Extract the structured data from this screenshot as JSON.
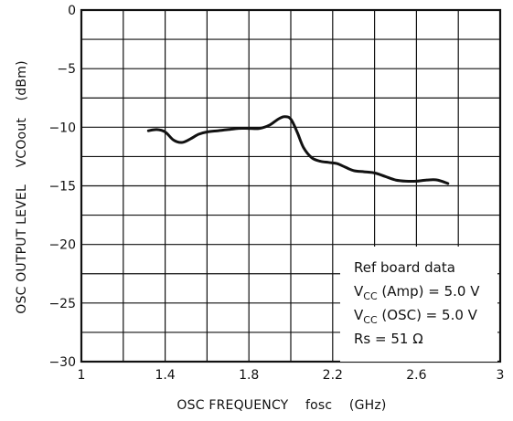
{
  "chart_data": {
    "type": "line",
    "xlabel": "OSC FREQUENCY    fosc    (GHz)",
    "ylabel": "OSC OUTPUT LEVEL    VCOout    (dBm)",
    "xlim": [
      1,
      3
    ],
    "ylim": [
      -30,
      0
    ],
    "x_ticks": [
      "1",
      "1.4",
      "1.8",
      "2.2",
      "2.6",
      "3"
    ],
    "x_tick_values": [
      1,
      1.4,
      1.8,
      2.2,
      2.6,
      3
    ],
    "y_ticks": [
      "0",
      "−5",
      "−10",
      "−15",
      "−20",
      "−25",
      "−30"
    ],
    "y_tick_values": [
      0,
      -5,
      -10,
      -15,
      -20,
      -25,
      -30
    ],
    "grid": true,
    "series": [
      {
        "x": [
          1.32,
          1.36,
          1.4,
          1.44,
          1.48,
          1.52,
          1.56,
          1.6,
          1.65,
          1.7,
          1.75,
          1.8,
          1.85,
          1.9,
          1.94,
          1.97,
          2.0,
          2.03,
          2.06,
          2.1,
          2.14,
          2.18,
          2.22,
          2.26,
          2.3,
          2.35,
          2.4,
          2.45,
          2.5,
          2.55,
          2.6,
          2.65,
          2.7,
          2.75
        ],
        "y": [
          -10.3,
          -10.2,
          -10.4,
          -11.1,
          -11.3,
          -11.0,
          -10.6,
          -10.4,
          -10.3,
          -10.2,
          -10.1,
          -10.1,
          -10.1,
          -9.8,
          -9.3,
          -9.1,
          -9.3,
          -10.4,
          -11.7,
          -12.6,
          -12.9,
          -13.0,
          -13.1,
          -13.4,
          -13.7,
          -13.8,
          -13.9,
          -14.2,
          -14.5,
          -14.6,
          -14.6,
          -14.5,
          -14.5,
          -14.8
        ]
      }
    ],
    "annotation": {
      "line1": "Ref board data",
      "line2_main": "V",
      "line2_sub": "CC",
      "line2_rest": " (Amp) = 5.0 V",
      "line3_main": "V",
      "line3_sub": "CC",
      "line3_rest": " (OSC) = 5.0 V",
      "line4": "Rs = 51 Ω"
    },
    "colors": {
      "line": "#111111",
      "grid": "#111111",
      "background": "#ffffff"
    }
  }
}
